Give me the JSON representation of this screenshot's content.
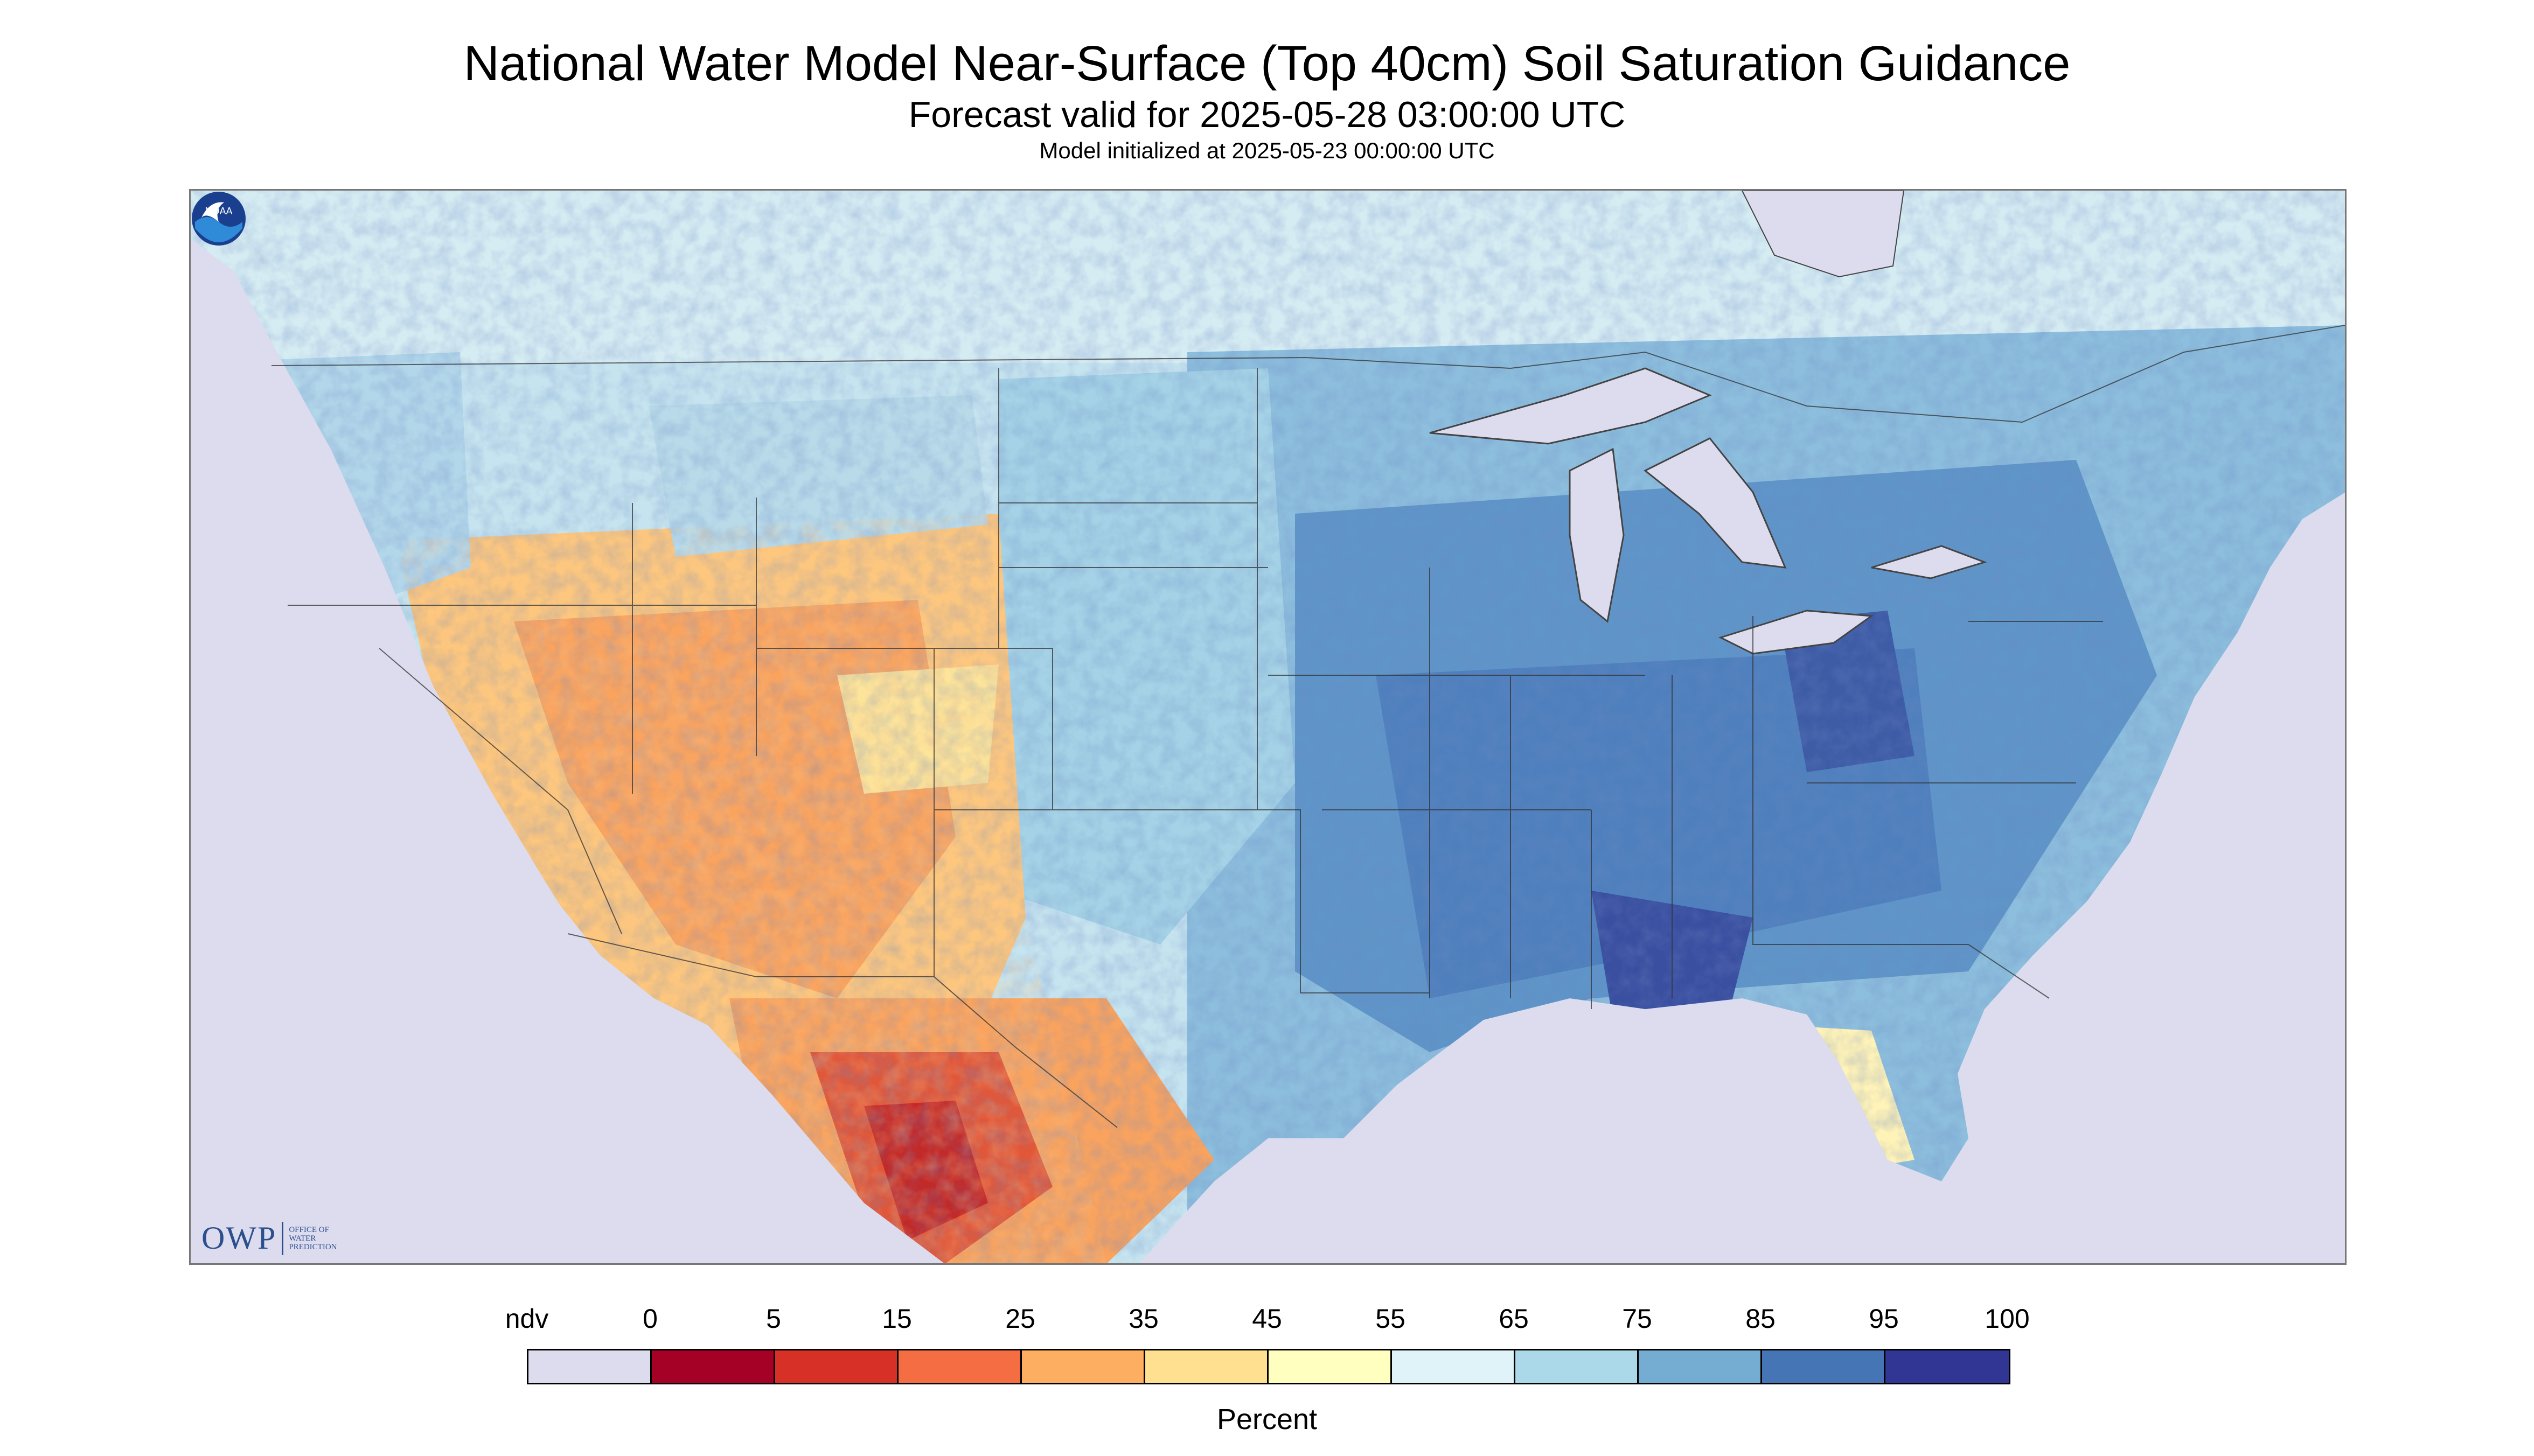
{
  "title": "National Water Model Near-Surface (Top 40cm) Soil Saturation Guidance",
  "subtitle": "Forecast valid for 2025-05-28 03:00:00 UTC",
  "init_line": "Model initialized at 2025-05-23 00:00:00 UTC",
  "logo": {
    "owp_text": "OWP",
    "owp_lines": [
      "OFFICE OF",
      "WATER",
      "PREDICTION"
    ],
    "noaa_text": "NOAA"
  },
  "legend": {
    "unit": "Percent",
    "labels": [
      "ndv",
      "0",
      "5",
      "15",
      "25",
      "35",
      "45",
      "55",
      "65",
      "75",
      "85",
      "95",
      "100"
    ],
    "colors": [
      "#dcdcee",
      "#a50026",
      "#d73027",
      "#f46d43",
      "#fdae61",
      "#fee090",
      "#ffffbf",
      "#e0f3f8",
      "#abd9e9",
      "#74add1",
      "#4575b4",
      "#313695"
    ]
  },
  "colors": {
    "ndv": "#dcdcee",
    "water": "#dcdcee",
    "boundary": "#333333"
  }
}
